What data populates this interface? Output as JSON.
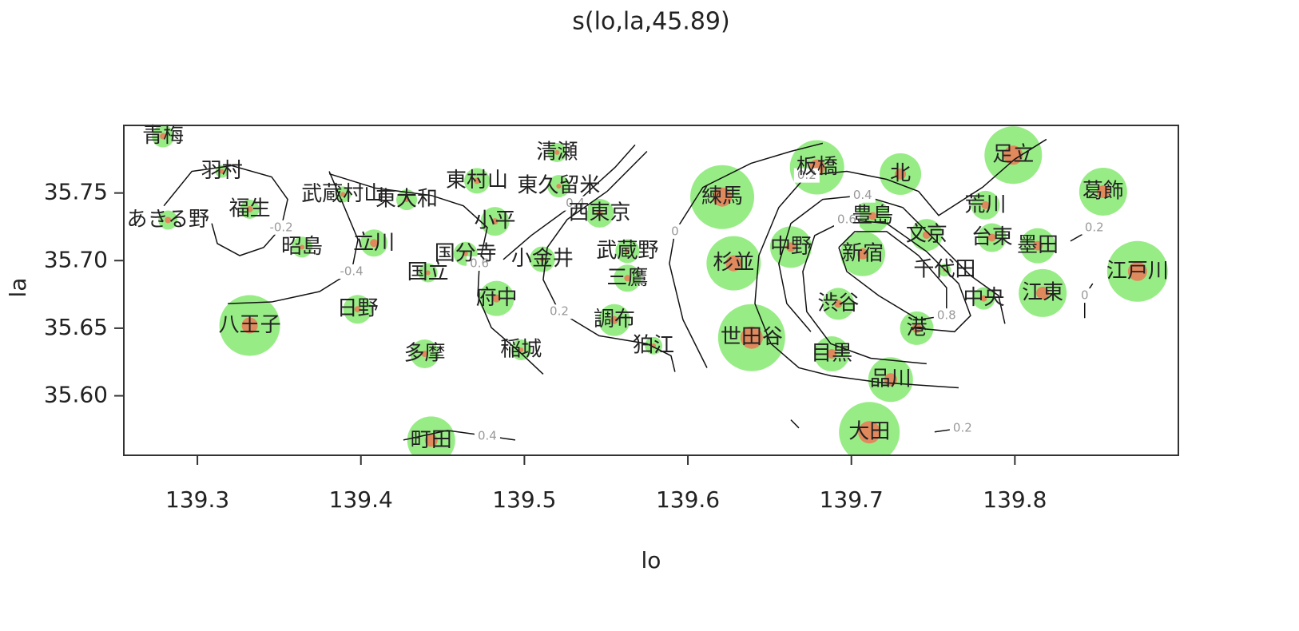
{
  "chart_data": {
    "type": "scatter",
    "title": "s(lo,la,45.89)",
    "xlabel": "lo",
    "ylabel": "la",
    "xlim": [
      139.255,
      139.9
    ],
    "ylim": [
      35.556,
      35.8
    ],
    "xticks": [
      139.3,
      139.4,
      139.5,
      139.6,
      139.7,
      139.8
    ],
    "yticks": [
      {
        "value": 35.6,
        "label": "35.60"
      },
      35.65,
      {
        "value": 35.7,
        "label": "35.70"
      },
      35.75
    ],
    "points": {
      "color": "#98ec86",
      "inner_color": "#e0895c",
      "names": [
        "青梅",
        "羽村",
        "あきる野",
        "福生",
        "昭島",
        "武蔵村山",
        "東大和",
        "立川",
        "国立",
        "国分寺",
        "東村山",
        "清瀬",
        "東久留米",
        "小平",
        "小金井",
        "西東京",
        "武蔵野",
        "三鷹",
        "日野",
        "八王子",
        "府中",
        "調布",
        "狛江",
        "多摩",
        "稲城",
        "町田",
        "練馬",
        "杉並",
        "世田谷",
        "中野",
        "板橋",
        "北",
        "豊島",
        "新宿",
        "文京",
        "千代田",
        "渋谷",
        "港",
        "目黒",
        "品川",
        "大田",
        "足立",
        "荒川",
        "台東",
        "墨田",
        "中央",
        "江東",
        "葛飾",
        "江戸川"
      ],
      "x": [
        139.279,
        139.315,
        139.282,
        139.332,
        139.364,
        139.389,
        139.428,
        139.408,
        139.441,
        139.464,
        139.471,
        139.52,
        139.521,
        139.482,
        139.511,
        139.546,
        139.563,
        139.563,
        139.398,
        139.332,
        139.483,
        139.555,
        139.579,
        139.439,
        139.498,
        139.443,
        139.621,
        139.628,
        139.639,
        139.663,
        139.679,
        139.73,
        139.713,
        139.707,
        139.746,
        139.757,
        139.692,
        139.74,
        139.688,
        139.724,
        139.711,
        139.799,
        139.782,
        139.786,
        139.814,
        139.781,
        139.817,
        139.854,
        139.875
      ],
      "y": [
        35.792,
        35.766,
        35.73,
        35.738,
        35.71,
        35.749,
        35.745,
        35.713,
        35.691,
        35.705,
        35.759,
        35.78,
        35.755,
        35.729,
        35.701,
        35.735,
        35.707,
        35.687,
        35.664,
        35.652,
        35.672,
        35.656,
        35.637,
        35.631,
        35.634,
        35.567,
        35.747,
        35.698,
        35.643,
        35.71,
        35.769,
        35.764,
        35.733,
        35.705,
        35.719,
        35.693,
        35.668,
        35.65,
        35.631,
        35.612,
        35.573,
        35.778,
        35.741,
        35.717,
        35.711,
        35.672,
        35.676,
        35.751,
        35.692
      ],
      "sizes": [
        14,
        8,
        12,
        12,
        13,
        10,
        13,
        17,
        12,
        15,
        16,
        12,
        14,
        18,
        16,
        18,
        15,
        17,
        18,
        38,
        22,
        20,
        11,
        18,
        13,
        30,
        40,
        34,
        42,
        26,
        34,
        26,
        21,
        28,
        20,
        8,
        20,
        21,
        22,
        28,
        38,
        36,
        18,
        18,
        22,
        14,
        30,
        30,
        38
      ],
      "inner_sizes": [
        4,
        3,
        4,
        4,
        3,
        3,
        3,
        5,
        3,
        3,
        4,
        3,
        3,
        4,
        3,
        4,
        3,
        4,
        4,
        10,
        5,
        5,
        3,
        4,
        3,
        8,
        12,
        10,
        14,
        6,
        10,
        7,
        5,
        7,
        5,
        2,
        5,
        6,
        6,
        8,
        14,
        12,
        5,
        5,
        6,
        4,
        8,
        8,
        12
      ]
    },
    "contours": [
      {
        "level": -0.2,
        "x": [
          139.2795,
          139.2966,
          139.321,
          139.3454,
          139.3552,
          139.3513,
          139.3405,
          139.3259,
          139.3122,
          139.3088
        ],
        "y": [
          35.7405,
          35.766,
          35.7702,
          35.7619,
          35.7453,
          35.7245,
          35.7097,
          35.7037,
          35.7126,
          35.7275
        ]
      },
      {
        "level": -0.4,
        "x": [
          139.3186,
          139.3454,
          139.3747,
          139.3943,
          139.3982,
          139.3904,
          139.3806
        ],
        "y": [
          35.6682,
          35.6694,
          35.6771,
          35.6919,
          35.7156,
          35.7381,
          35.766
        ]
      },
      {
        "level": 0.6,
        "x": [
          139.3806,
          139.4089,
          139.4431,
          139.4627,
          139.4773,
          139.4725,
          139.4715,
          139.4798,
          139.4969,
          139.5115
        ],
        "y": [
          35.7642,
          35.7536,
          35.7482,
          35.7405,
          35.7245,
          35.6978,
          35.6741,
          35.6504,
          35.6326,
          35.616
        ]
      },
      {
        "level": 0.4,
        "x": [
          139.4871,
          139.5042,
          139.5311,
          139.5555,
          139.5677
        ],
        "y": [
          35.7008,
          35.7186,
          35.7423,
          35.769,
          35.7856
        ]
      },
      {
        "level": 0.2,
        "x": [
          139.575,
          139.5506,
          139.5262,
          139.514,
          139.5115,
          139.5213,
          139.5457,
          139.575,
          139.5897,
          139.5921
        ],
        "y": [
          35.7808,
          35.7512,
          35.7304,
          35.7097,
          35.6859,
          35.6622,
          35.6444,
          35.6385,
          35.6296,
          35.6177
        ]
      },
      {
        "level": 0,
        "x": [
          139.6825,
          139.663,
          139.6385,
          139.6092,
          139.5921,
          139.5887,
          139.597,
          139.6117
        ],
        "y": [
          35.7868,
          35.7808,
          35.7719,
          35.7542,
          35.7215,
          35.6978,
          35.6563,
          35.6207
        ]
      },
      {
        "level": 0.2,
        "x": [
          139.7656,
          139.7167,
          139.6874,
          139.6679,
          139.6508,
          139.641,
          139.6434,
          139.6556,
          139.6727,
          139.6972,
          139.7216,
          139.7411,
          139.7534,
          139.7802,
          139.7998,
          139.8193
        ],
        "y": [
          35.6059,
          35.61,
          35.6148,
          35.6207,
          35.6385,
          35.6682,
          35.7037,
          35.7393,
          35.763,
          35.766,
          35.7601,
          35.7512,
          35.7334,
          35.7542,
          35.7749,
          35.7897
        ]
      },
      {
        "level": 0.4,
        "x": [
          139.6752,
          139.6605,
          139.6556,
          139.663,
          139.6825,
          139.7069,
          139.7314,
          139.7509,
          139.7729,
          139.79,
          139.7939
        ],
        "y": [
          35.6474,
          35.6682,
          35.6978,
          35.7275,
          35.7453,
          35.7482,
          35.7393,
          35.7156,
          35.6889,
          35.6741,
          35.6533
        ]
      },
      {
        "level": 0.6,
        "x": [
          139.746,
          139.7118,
          139.6874,
          139.6727,
          139.6703,
          139.6776,
          139.6972,
          139.7216,
          139.746,
          139.7656,
          139.7729,
          139.7631,
          139.7363
        ],
        "y": [
          35.6237,
          35.6278,
          35.6385,
          35.6622,
          35.6919,
          35.7186,
          35.7304,
          35.7275,
          35.7067,
          35.683,
          35.6593,
          35.6474,
          35.6504
        ]
      },
      {
        "level": 0.8,
        "x": [
          139.6923,
          139.7021,
          139.7216,
          139.7411,
          139.7582,
          139.7582,
          139.7411,
          139.7167,
          139.6972,
          139.6923
        ],
        "y": [
          35.7097,
          35.7215,
          35.7215,
          35.7037,
          35.68,
          35.6593,
          35.6563,
          35.6741,
          35.6919,
          35.7097
        ]
      },
      {
        "level": 0.2,
        "x": [
          139.663,
          139.6679,
          null,
          139.7509,
          139.768
        ],
        "y": [
          35.5822,
          35.5762,
          null,
          35.5733,
          35.5762
        ]
      },
      {
        "level": 0.4,
        "x": [
          139.426,
          139.4529,
          139.4773,
          139.4944
        ],
        "y": [
          35.5673,
          35.5744,
          35.5703,
          35.5673
        ]
      },
      {
        "level": 0.2,
        "x": [
          139.834,
          139.8486
        ],
        "y": [
          35.7144,
          35.7245
        ]
      },
      {
        "level": 0,
        "x": [
          139.8476,
          139.8427,
          139.8427
        ],
        "y": [
          35.683,
          35.6741,
          35.6575
        ]
      }
    ]
  }
}
